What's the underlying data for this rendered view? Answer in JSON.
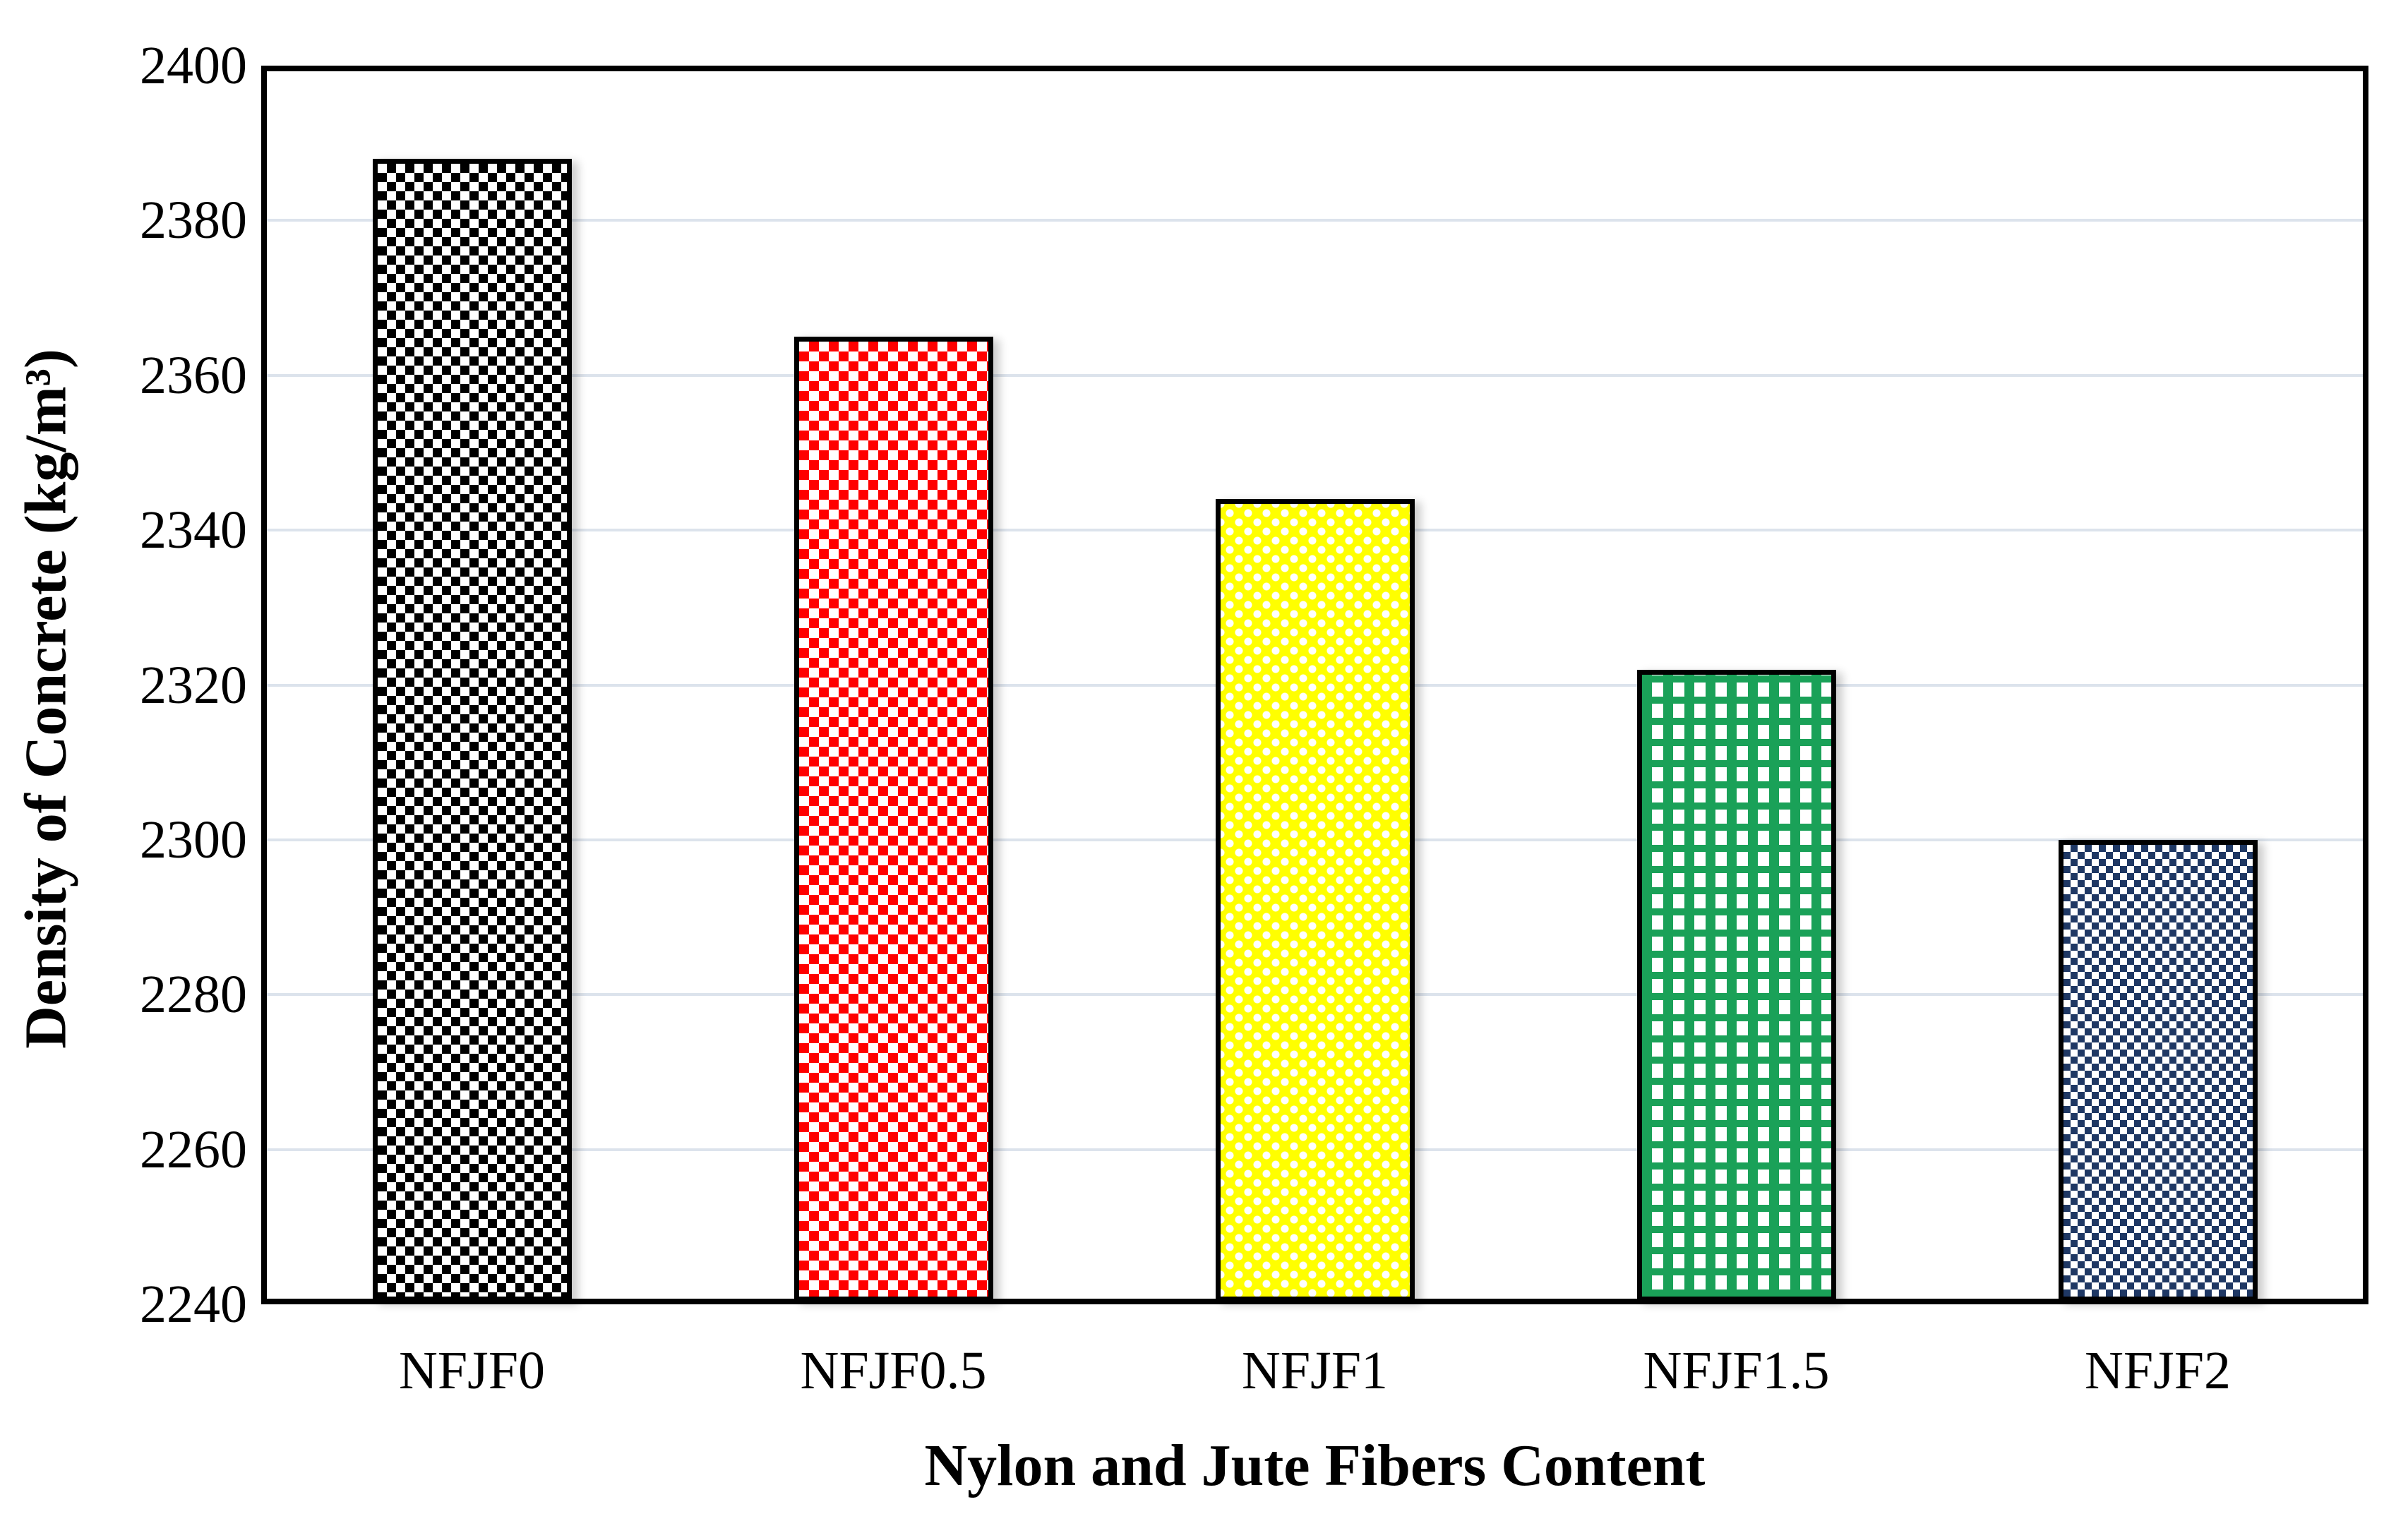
{
  "chart_data": {
    "type": "bar",
    "title": "",
    "categories": [
      "NFJF0",
      "NFJF0.5",
      "NFJF1",
      "NFJF1.5",
      "NFJF2"
    ],
    "values": [
      2388,
      2365,
      2344,
      2322,
      2300
    ],
    "xlabel": "Nylon and Jute Fibers Content",
    "ylabel": "Density of Concrete (kg/m³)",
    "ylim": [
      2240,
      2400
    ],
    "yticks": [
      2240,
      2260,
      2280,
      2300,
      2320,
      2340,
      2360,
      2380,
      2400
    ],
    "ytick_step": 20,
    "grid": true,
    "gridline_color": "#dce3ec",
    "legend": false,
    "bar_border_color": "#000000",
    "bar_patterns": [
      {
        "name": "black-white-checkerboard",
        "color": "#000000"
      },
      {
        "name": "red-diamond-lattice",
        "color": "#ff0000"
      },
      {
        "name": "yellow-weave-white-dots",
        "color": "#ffff00"
      },
      {
        "name": "green-plaid",
        "color": "#1aa158"
      },
      {
        "name": "navy-dotted-squares",
        "color": "#1f3864"
      }
    ]
  }
}
